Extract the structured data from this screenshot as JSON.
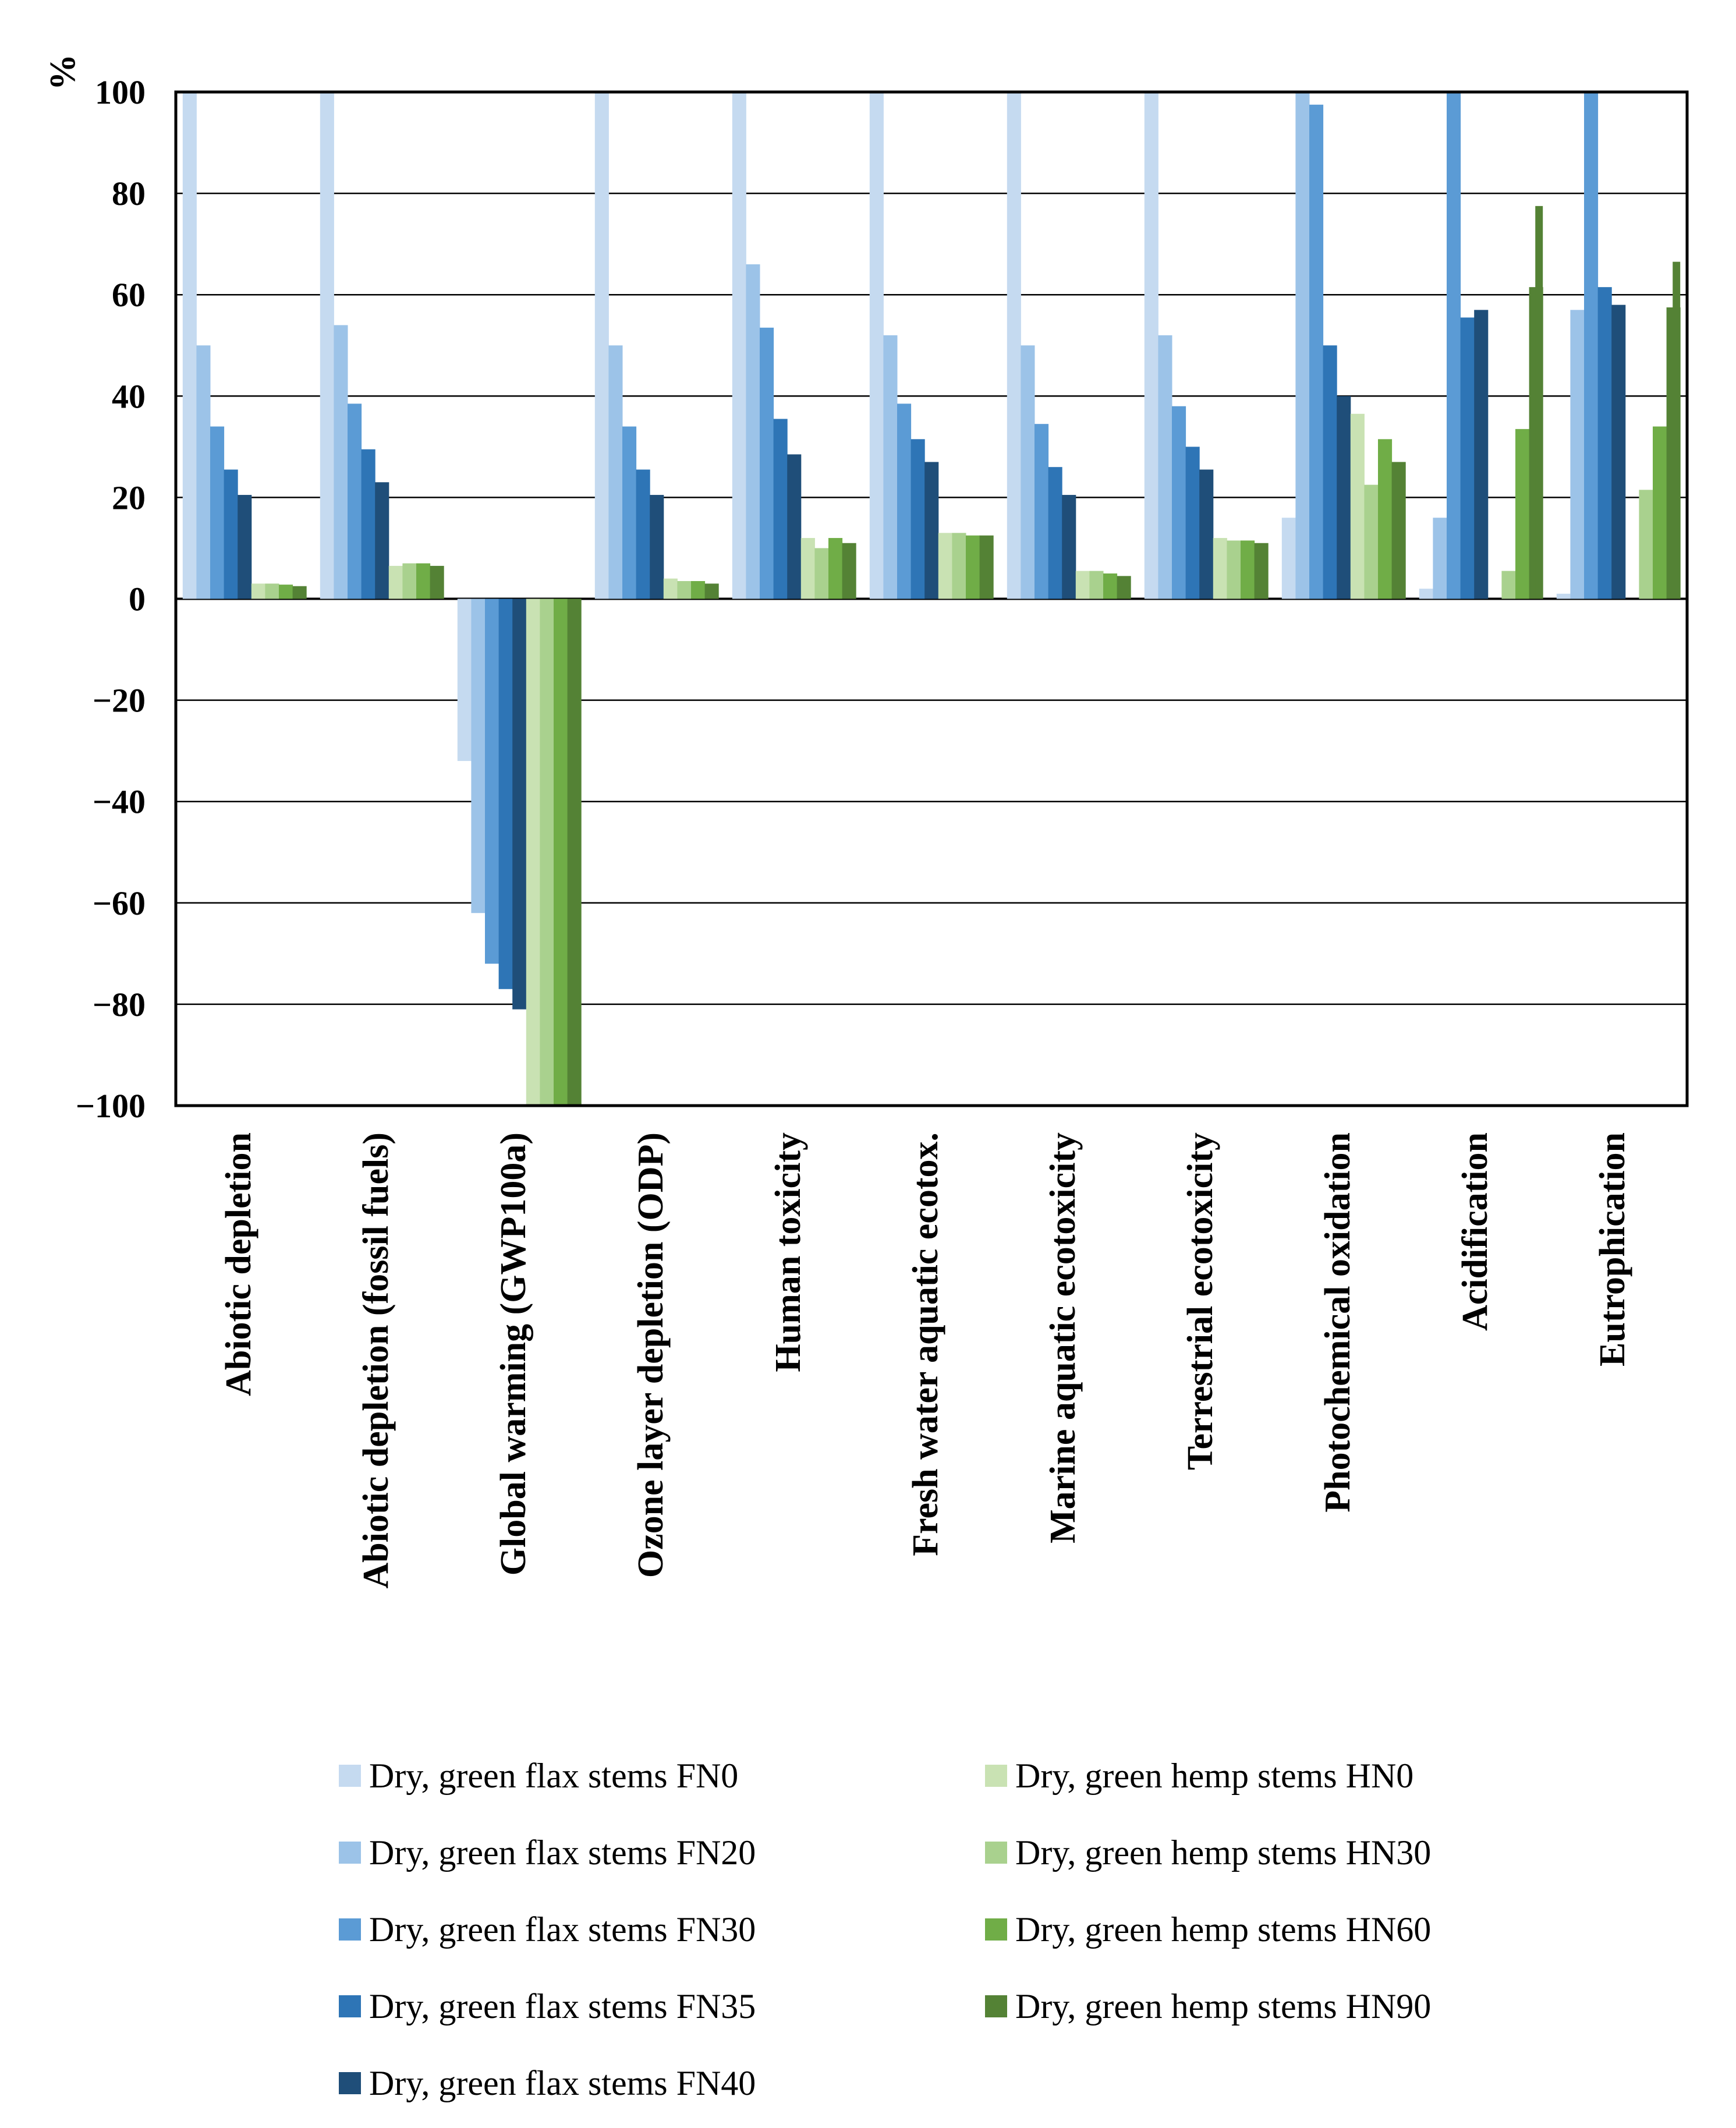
{
  "chart_data": {
    "type": "bar",
    "ylabel": "%",
    "ylim": [
      -100,
      100
    ],
    "yticks": [
      100,
      80,
      60,
      40,
      20,
      0,
      -20,
      -40,
      -60,
      -80,
      -100
    ],
    "ytick_labels": [
      "100",
      "80",
      "60",
      "40",
      "20",
      "0",
      "−20",
      "−40",
      "−60",
      "−80",
      "−100"
    ],
    "grid": true,
    "legend_position": "bottom",
    "categories": [
      "Abiotic depletion",
      "Abiotic depletion (fossil fuels)",
      "Global warming (GWP100a)",
      "Ozone layer depletion (ODP)",
      "Human toxicity",
      "Fresh water aquatic ecotox.",
      "Marine aquatic ecotoxicity",
      "Terrestrial ecotoxicity",
      "Photochemical oxidation",
      "Acidification",
      "Eutrophication"
    ],
    "series": [
      {
        "name": "Dry, green flax stems FN0",
        "color": "#c5daf0",
        "values": [
          100,
          100,
          -32,
          100,
          100,
          100,
          100,
          100,
          16,
          2,
          1
        ]
      },
      {
        "name": "Dry, green flax stems FN20",
        "color": "#9cc3e8",
        "values": [
          50,
          54,
          -62,
          50,
          66,
          52,
          50,
          52,
          100,
          16,
          57
        ]
      },
      {
        "name": "Dry, green flax stems FN30",
        "color": "#5b9bd5",
        "values": [
          34,
          38.5,
          -72,
          34,
          53.5,
          38.5,
          34.5,
          38,
          97.5,
          100,
          100
        ]
      },
      {
        "name": "Dry, green flax stems FN35",
        "color": "#2e75b6",
        "values": [
          25.5,
          29.5,
          -77,
          25.5,
          35.5,
          31.5,
          26,
          30,
          50,
          55.5,
          61.5
        ]
      },
      {
        "name": "Dry, green flax stems FN40",
        "color": "#1f4e79",
        "values": [
          20.5,
          23,
          -81,
          20.5,
          28.5,
          27,
          20.5,
          25.5,
          40,
          57,
          58
        ]
      },
      {
        "name": "Dry, green hemp stems HN0",
        "color": "#c9e2b3",
        "values": [
          3,
          6.5,
          -100,
          4,
          12,
          13,
          5.5,
          12,
          36.5,
          0,
          0
        ]
      },
      {
        "name": "Dry, green hemp stems HN30",
        "color": "#a9d18e",
        "values": [
          3,
          7,
          -100,
          3.5,
          10,
          13,
          5.5,
          11.5,
          22.5,
          5.5,
          21.5
        ]
      },
      {
        "name": "Dry, green hemp stems HN60",
        "color": "#70ad47",
        "values": [
          2.8,
          7,
          -100,
          3.5,
          12,
          12.5,
          5,
          11.5,
          31.5,
          33.5,
          34
        ]
      },
      {
        "name": "Dry, green hemp stems HN90",
        "color": "#548235",
        "values": [
          2.5,
          6.5,
          -100,
          3,
          11,
          12.5,
          4.5,
          11,
          27,
          61.5,
          57.5
        ]
      }
    ],
    "extra_values_note_free": [
      0,
      0,
      0,
      0,
      0,
      0,
      0,
      0,
      0,
      77.5,
      66.5
    ]
  },
  "legend": {
    "items": [
      {
        "label": "Dry, green flax stems FN0",
        "color": "#c5daf0"
      },
      {
        "label": "Dry, green hemp stems HN0",
        "color": "#c9e2b3"
      },
      {
        "label": "Dry, green flax stems FN20",
        "color": "#9cc3e8"
      },
      {
        "label": "Dry, green hemp stems HN30",
        "color": "#a9d18e"
      },
      {
        "label": "Dry, green flax stems FN30",
        "color": "#5b9bd5"
      },
      {
        "label": "Dry, green hemp stems HN60",
        "color": "#70ad47"
      },
      {
        "label": "Dry, green flax stems FN35",
        "color": "#2e75b6"
      },
      {
        "label": "Dry, green hemp stems HN90",
        "color": "#548235"
      },
      {
        "label": "Dry, green flax stems FN40",
        "color": "#1f4e79"
      }
    ]
  }
}
